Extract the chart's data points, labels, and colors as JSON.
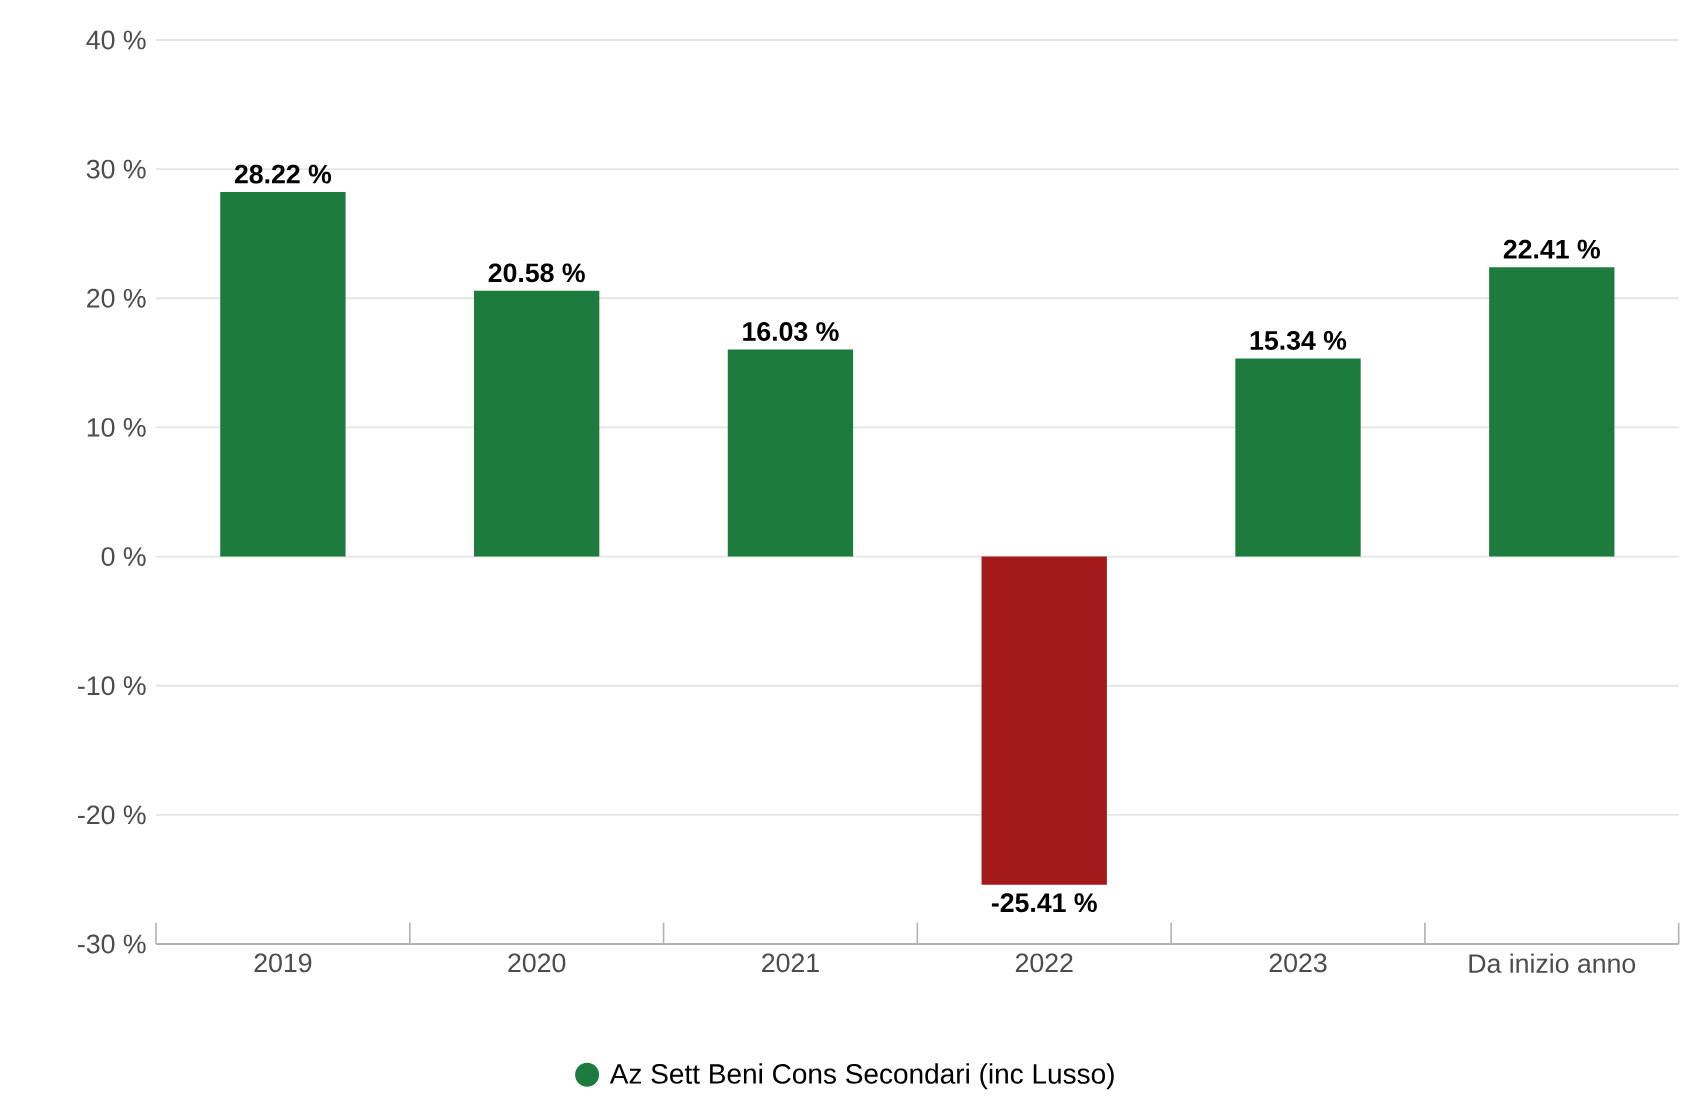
{
  "chart_data": {
    "type": "bar",
    "categories": [
      "2019",
      "2020",
      "2021",
      "2022",
      "2023",
      "Da inizio anno"
    ],
    "series": [
      {
        "name": "Az Sett Beni Cons Secondari (inc Lusso)",
        "color": "#1e7b3e",
        "colors": [
          "#1e7b3e",
          "#1e7b3e",
          "#1e7b3e",
          "#a3191c",
          "#1e7b3e",
          "#1e7b3e"
        ],
        "values": [
          28.22,
          20.58,
          16.03,
          -25.41,
          15.34,
          22.41
        ],
        "value_labels": [
          "28.22 %",
          "20.58 %",
          "16.03 %",
          "-25.41 %",
          "15.34 %",
          "22.41 %"
        ]
      }
    ],
    "ylim": [
      -30,
      40
    ],
    "yticks": [
      {
        "value": -30,
        "label": "-30 %"
      },
      {
        "value": -20,
        "label": "-20 %"
      },
      {
        "value": -10,
        "label": "-10 %"
      },
      {
        "value": 0,
        "label": "0 %"
      },
      {
        "value": 10,
        "label": "10 %"
      },
      {
        "value": 20,
        "label": "20 %"
      },
      {
        "value": 30,
        "label": "30 %"
      },
      {
        "value": 40,
        "label": "40 %"
      }
    ],
    "grid": "y",
    "legend": "bottom"
  }
}
